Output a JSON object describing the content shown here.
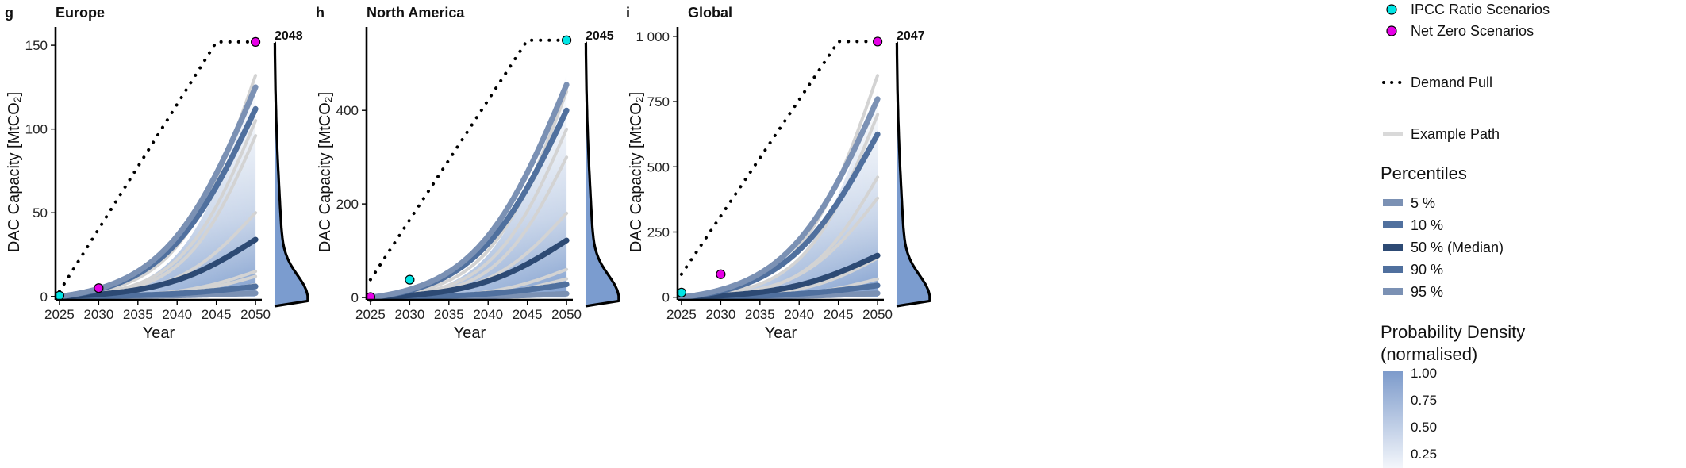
{
  "legend": {
    "scenario_markers": [
      {
        "label": "IPCC Ratio Scenarios",
        "color": "#00e5e5"
      },
      {
        "label": "Net Zero Scenarios",
        "color": "#e600e6"
      }
    ],
    "demand_pull_label": "Demand Pull",
    "example_path_label": "Example Path",
    "percentiles_title": "Percentiles",
    "percentiles": [
      {
        "label": "5 %",
        "color": "#7b91b4"
      },
      {
        "label": "10 %",
        "color": "#50709e"
      },
      {
        "label": "50 % (Median)",
        "color": "#2d4a74"
      },
      {
        "label": "90 %",
        "color": "#50709e"
      },
      {
        "label": "95 %",
        "color": "#7b91b4"
      }
    ],
    "density_title_line1": "Probability Density",
    "density_title_line2": "(normalised)",
    "density_ticks": [
      "1.00",
      "0.75",
      "0.50",
      "0.25"
    ]
  },
  "chart_data": [
    {
      "panel_letter": "g",
      "title": "Europe",
      "type": "line",
      "xlabel": "Year",
      "ylabel": "DAC Capacity [MtCO₂]",
      "x_ticks": [
        2025,
        2030,
        2035,
        2040,
        2045,
        2050
      ],
      "y_ticks": [
        0,
        50,
        100,
        150
      ],
      "y_tick_labels": [
        "0",
        "50",
        "100",
        "150"
      ],
      "xlim": [
        2024.5,
        2050.8
      ],
      "ylim": [
        -2,
        160
      ],
      "demand_pull": {
        "x": [
          2025,
          2045,
          2050
        ],
        "y": [
          3,
          152,
          152
        ]
      },
      "percentiles": [
        {
          "name": "5 %",
          "values_2050": 2
        },
        {
          "name": "10 %",
          "values_2050": 6
        },
        {
          "name": "50 % (Median)",
          "values_2050": 34
        },
        {
          "name": "90 %",
          "values_2050": 112
        },
        {
          "name": "95 %",
          "values_2050": 125
        }
      ],
      "example_paths_2050": [
        132,
        105,
        96,
        50,
        15,
        12,
        7
      ],
      "ipcc_points": [
        {
          "x": 2025,
          "y": 0.5
        }
      ],
      "net_zero_points": [
        {
          "x": 2030,
          "y": 5
        },
        {
          "x": 2050,
          "y": 152
        }
      ],
      "density_peak_label": "2048"
    },
    {
      "panel_letter": "h",
      "title": "North America",
      "type": "line",
      "xlabel": "Year",
      "ylabel": "DAC Capacity [MtCO₂]",
      "x_ticks": [
        2025,
        2030,
        2035,
        2040,
        2045,
        2050
      ],
      "y_ticks": [
        0,
        200,
        400
      ],
      "y_tick_labels": [
        "0",
        "200",
        "400"
      ],
      "xlim": [
        2024.5,
        2050.8
      ],
      "ylim": [
        -5,
        575
      ],
      "demand_pull": {
        "x": [
          2025,
          2045,
          2050
        ],
        "y": [
          38,
          550,
          550
        ]
      },
      "percentiles": [
        {
          "name": "5 %",
          "values_2050": 8
        },
        {
          "name": "10 %",
          "values_2050": 28
        },
        {
          "name": "50 % (Median)",
          "values_2050": 122
        },
        {
          "name": "90 %",
          "values_2050": 400
        },
        {
          "name": "95 %",
          "values_2050": 455
        }
      ],
      "example_paths_2050": [
        440,
        360,
        300,
        180,
        60,
        40
      ],
      "ipcc_points": [
        {
          "x": 2030,
          "y": 38
        },
        {
          "x": 2050,
          "y": 550
        }
      ],
      "net_zero_points": [
        {
          "x": 2025,
          "y": 1
        }
      ],
      "density_peak_label": "2045"
    },
    {
      "panel_letter": "i",
      "title": "Global",
      "type": "line",
      "xlabel": "Year",
      "ylabel": "DAC Capacity [MtCO₂]",
      "x_ticks": [
        2025,
        2030,
        2035,
        2040,
        2045,
        2050
      ],
      "y_ticks": [
        0,
        250,
        500,
        750,
        1000
      ],
      "y_tick_labels": [
        "0",
        "250",
        "500",
        "750",
        "1 000"
      ],
      "xlim": [
        2024.5,
        2050.8
      ],
      "ylim": [
        -10,
        1030
      ],
      "demand_pull": {
        "x": [
          2025,
          2045,
          2050
        ],
        "y": [
          88,
          980,
          980
        ]
      },
      "percentiles": [
        {
          "name": "5 %",
          "values_2050": 15
        },
        {
          "name": "10 %",
          "values_2050": 45
        },
        {
          "name": "50 % (Median)",
          "values_2050": 160
        },
        {
          "name": "90 %",
          "values_2050": 625
        },
        {
          "name": "95 %",
          "values_2050": 760
        }
      ],
      "example_paths_2050": [
        850,
        700,
        460,
        380,
        150,
        70
      ],
      "ipcc_points": [
        {
          "x": 2025,
          "y": 18
        }
      ],
      "net_zero_points": [
        {
          "x": 2030,
          "y": 88
        },
        {
          "x": 2050,
          "y": 980
        }
      ],
      "density_peak_label": "2047"
    }
  ]
}
